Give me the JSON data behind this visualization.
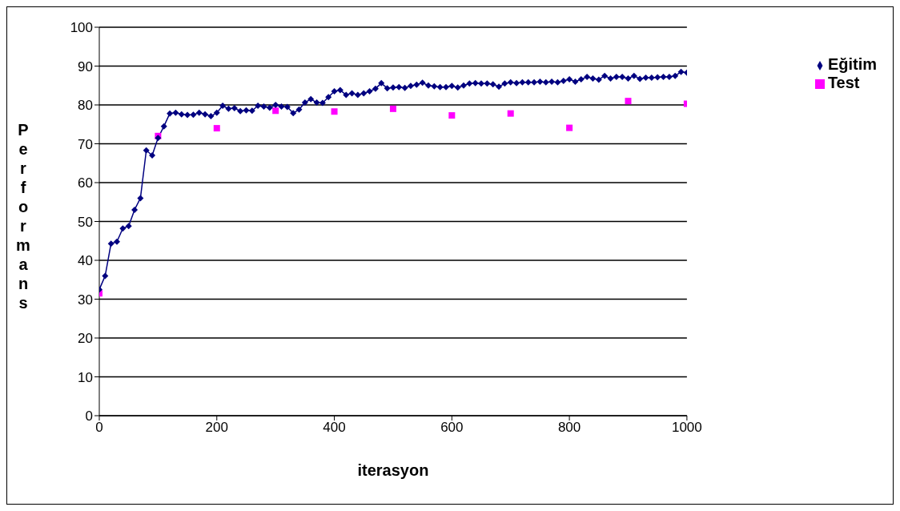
{
  "chart_data": {
    "type": "line",
    "xlabel": "iterasyon",
    "ylabel": "Performans",
    "xlim": [
      0,
      1000
    ],
    "xticks": [
      0,
      200,
      400,
      600,
      800,
      1000
    ],
    "ylim": [
      0,
      100
    ],
    "yticks": [
      0,
      10,
      20,
      30,
      40,
      50,
      60,
      70,
      80,
      90,
      100
    ],
    "grid": "y",
    "legend": "right",
    "series": [
      {
        "name": "Eğitim",
        "color": "#000080",
        "marker": "diamond",
        "x": [
          0,
          10,
          20,
          30,
          40,
          50,
          60,
          70,
          80,
          90,
          100,
          110,
          120,
          130,
          140,
          150,
          160,
          170,
          180,
          190,
          200,
          210,
          220,
          230,
          240,
          250,
          260,
          270,
          280,
          290,
          300,
          310,
          320,
          330,
          340,
          350,
          360,
          370,
          380,
          390,
          400,
          410,
          420,
          430,
          440,
          450,
          460,
          470,
          480,
          490,
          500,
          510,
          520,
          530,
          540,
          550,
          560,
          570,
          580,
          590,
          600,
          610,
          620,
          630,
          640,
          650,
          660,
          670,
          680,
          690,
          700,
          710,
          720,
          730,
          740,
          750,
          760,
          770,
          780,
          790,
          800,
          810,
          820,
          830,
          840,
          850,
          860,
          870,
          880,
          890,
          900,
          910,
          920,
          930,
          940,
          950,
          960,
          970,
          980,
          990,
          1000
        ],
        "values": [
          32.5,
          36,
          44.3,
          44.8,
          48.2,
          48.8,
          53,
          56,
          68.3,
          67,
          71.5,
          74.5,
          77.8,
          78,
          77.6,
          77.4,
          77.5,
          78,
          77.6,
          77.1,
          78,
          79.8,
          79,
          79.2,
          78.4,
          78.6,
          78.5,
          79.8,
          79.6,
          79.3,
          80,
          79.6,
          79.5,
          77.9,
          78.8,
          80.6,
          81.5,
          80.6,
          80.5,
          82,
          83.5,
          83.8,
          82.6,
          83,
          82.6,
          83,
          83.5,
          84.2,
          85.6,
          84.3,
          84.5,
          84.6,
          84.4,
          84.9,
          85.2,
          85.7,
          85,
          84.8,
          84.6,
          84.6,
          84.9,
          84.5,
          85,
          85.5,
          85.6,
          85.5,
          85.5,
          85.3,
          84.7,
          85.5,
          85.8,
          85.6,
          85.8,
          85.8,
          85.8,
          86,
          85.8,
          86,
          85.8,
          86.2,
          86.6,
          86,
          86.6,
          87.2,
          86.8,
          86.5,
          87.5,
          86.8,
          87.2,
          87.2,
          86.8,
          87.5,
          86.7,
          87,
          87,
          87.1,
          87.2,
          87.2,
          87.5,
          88.5,
          88.3
        ]
      },
      {
        "name": "Test",
        "type": "scatter",
        "color": "#ff00ff",
        "marker": "square",
        "x": [
          0,
          100,
          200,
          300,
          400,
          500,
          600,
          700,
          800,
          900,
          1000
        ],
        "values": [
          31.5,
          72,
          74,
          78.5,
          78.3,
          79,
          77.3,
          77.8,
          74.1,
          81,
          80.3
        ]
      }
    ]
  }
}
